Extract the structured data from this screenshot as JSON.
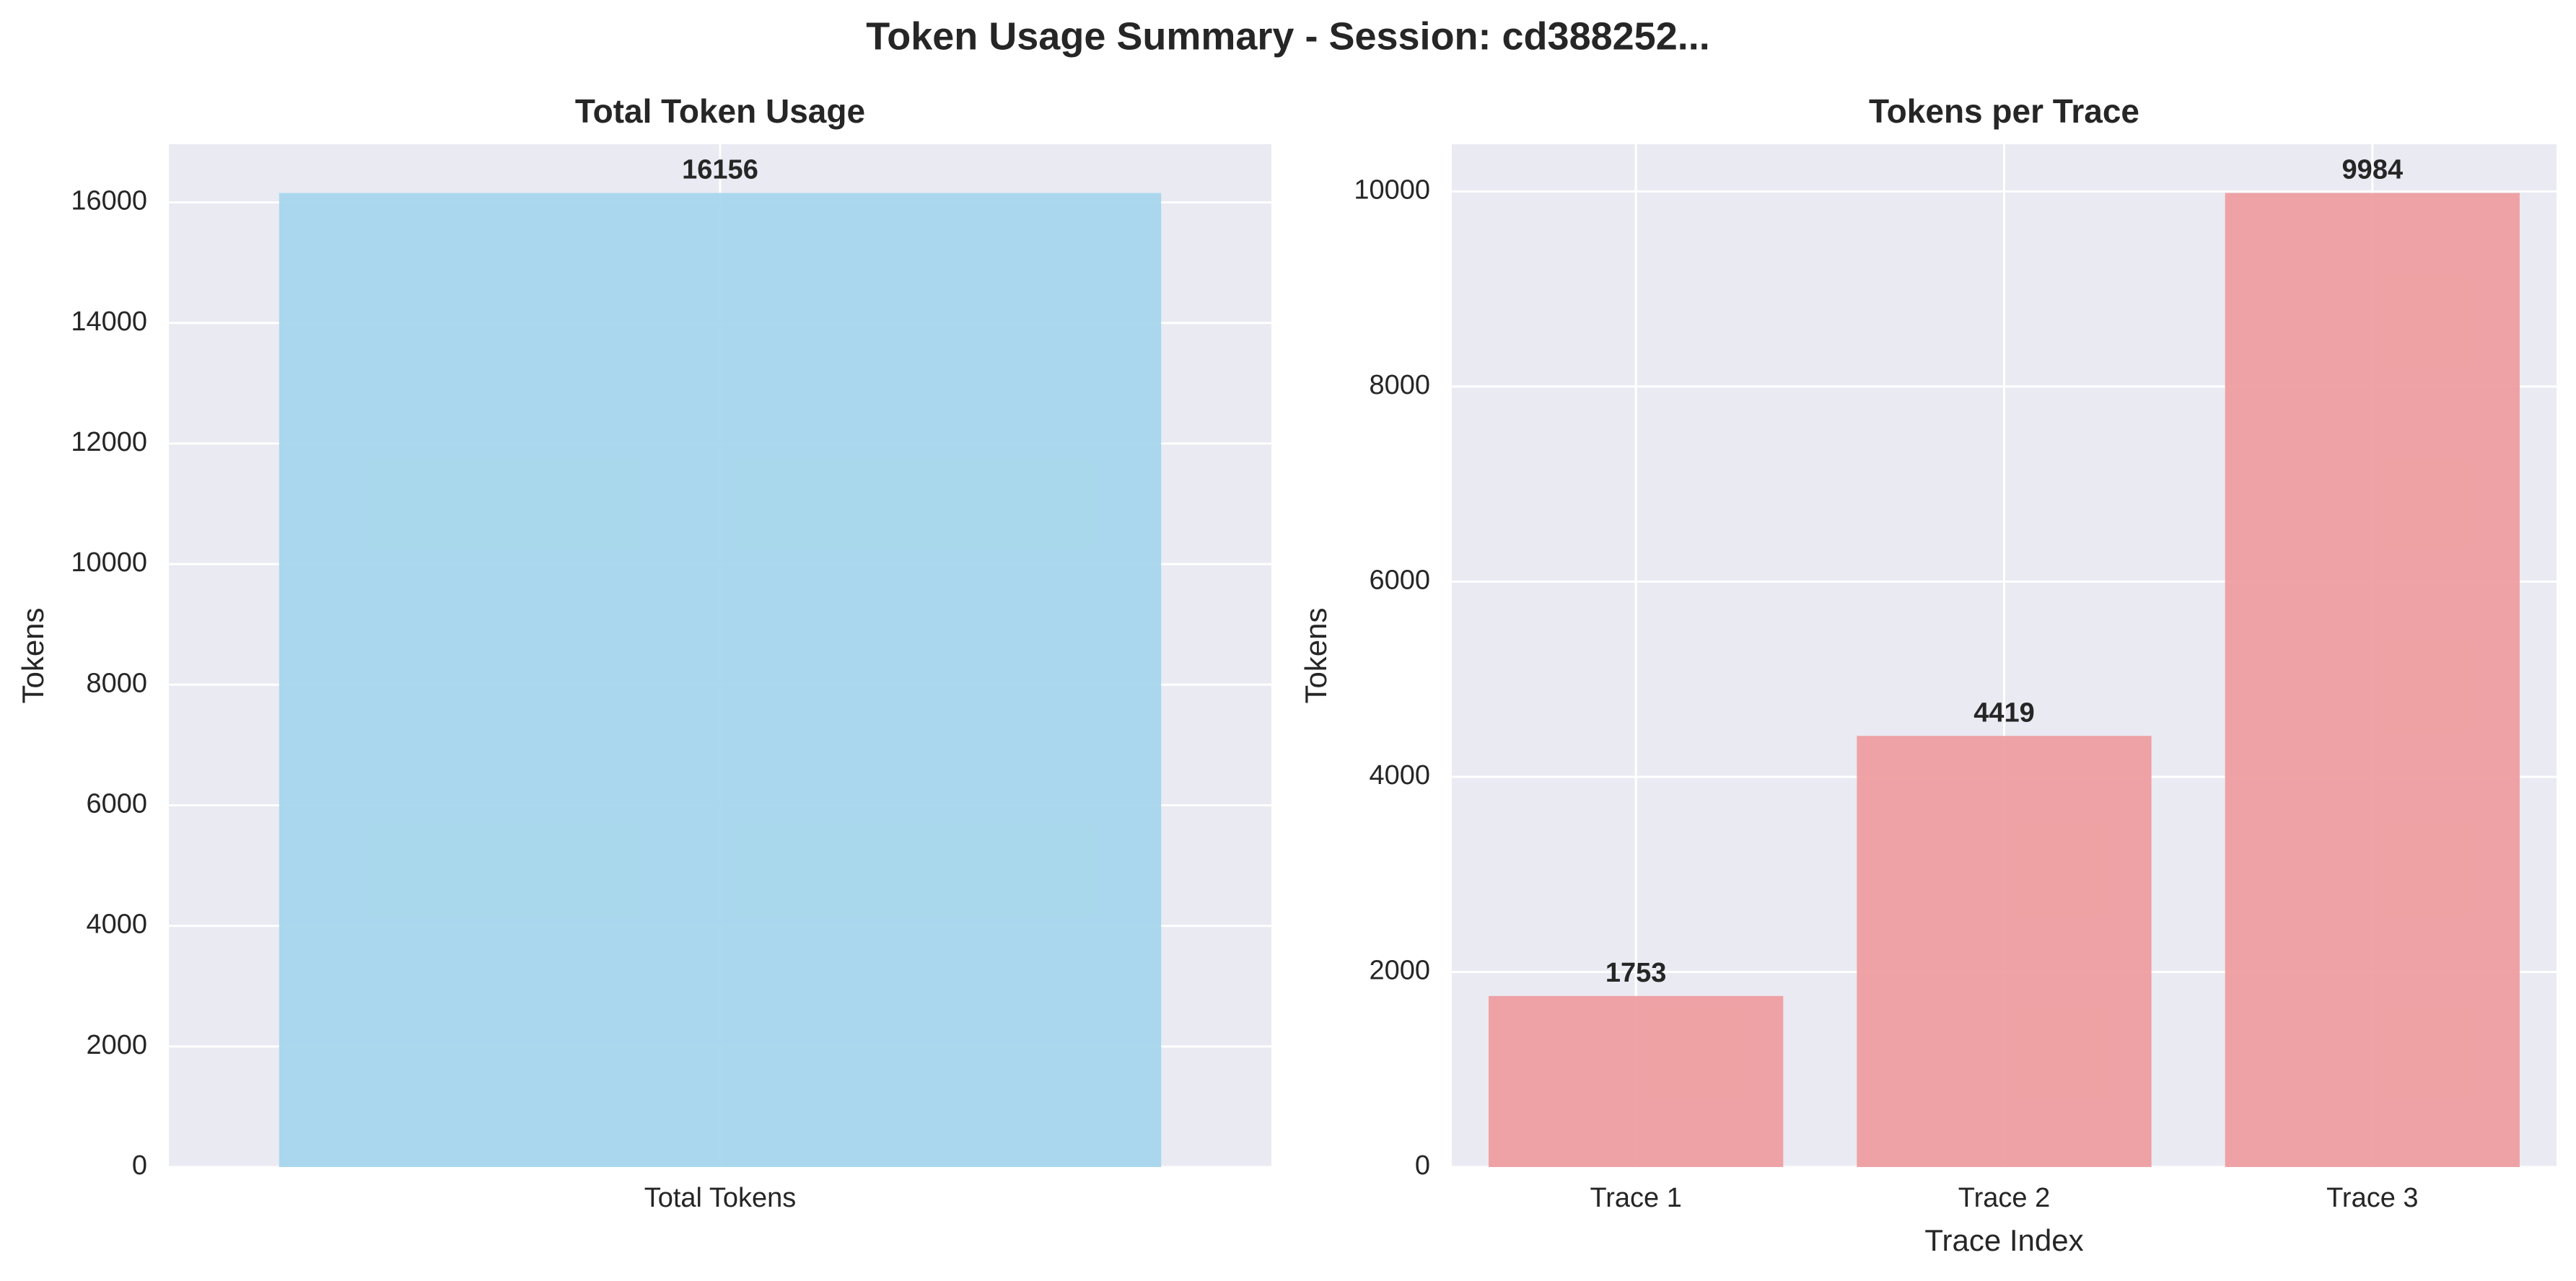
{
  "figure": {
    "suptitle": "Token Usage Summary - Session: cd388252..."
  },
  "colors": {
    "plot_background": "#eaeaf2",
    "grid": "#ffffff",
    "text": "#262626",
    "total_bar": "#a6d6ec",
    "trace_bar": "#ee9ea0"
  },
  "chart_data": [
    {
      "type": "bar",
      "title": "Total Token Usage",
      "xlabel": "",
      "ylabel": "Tokens",
      "categories": [
        "Total Tokens"
      ],
      "values": [
        16156
      ],
      "value_labels": [
        "16156"
      ],
      "ylim": [
        0,
        16963.8
      ],
      "yticks": [
        0,
        2000,
        4000,
        6000,
        8000,
        10000,
        12000,
        14000,
        16000
      ],
      "ytick_labels": [
        "0",
        "2000",
        "4000",
        "6000",
        "8000",
        "10000",
        "12000",
        "14000",
        "16000"
      ],
      "grid": true,
      "legend": "none",
      "bar_color": "#a6d6ec"
    },
    {
      "type": "bar",
      "title": "Tokens per Trace",
      "xlabel": "Trace Index",
      "ylabel": "Tokens",
      "categories": [
        "Trace 1",
        "Trace 2",
        "Trace 3"
      ],
      "values": [
        1753,
        4419,
        9984
      ],
      "value_labels": [
        "1753",
        "4419",
        "9984"
      ],
      "ylim": [
        0,
        10483.2
      ],
      "yticks": [
        0,
        2000,
        4000,
        6000,
        8000,
        10000
      ],
      "ytick_labels": [
        "0",
        "2000",
        "4000",
        "6000",
        "8000",
        "10000"
      ],
      "grid": true,
      "legend": "none",
      "bar_color": "#ee9ea0"
    }
  ]
}
